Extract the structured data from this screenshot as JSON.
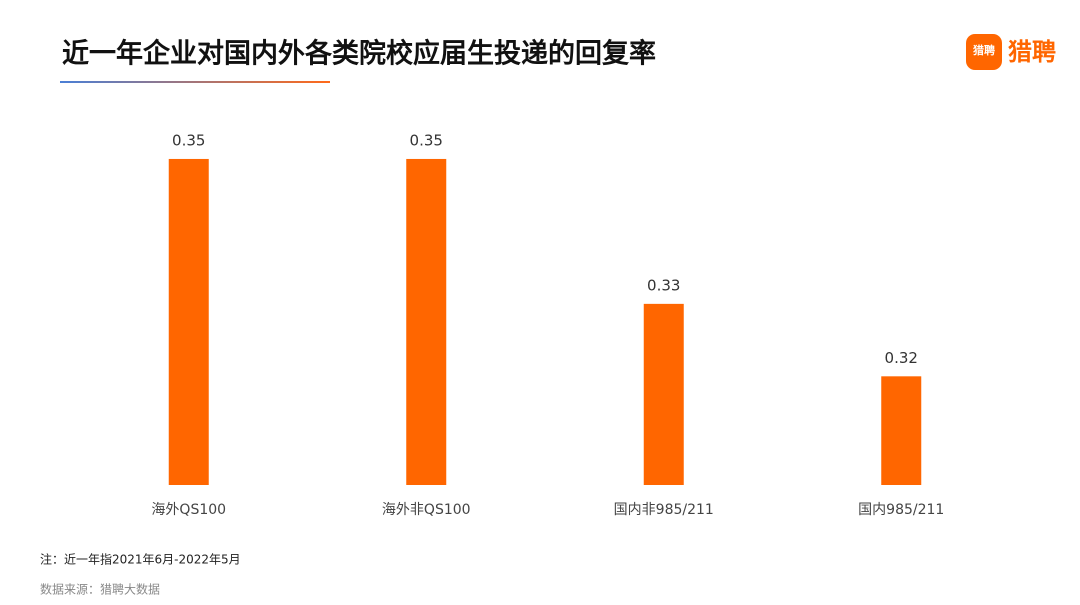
{
  "brand": "猎聘",
  "chart_data": {
    "type": "bar",
    "title": "近一年企业对国内外各类院校应届生投递的回复率",
    "categories": [
      "海外QS100",
      "海外非QS100",
      "国内非985/211",
      "国内985/211"
    ],
    "values": [
      0.35,
      0.35,
      0.33,
      0.32
    ],
    "color": "#ff6600",
    "ylim": [
      0.305,
      0.36
    ],
    "note": "注：近一年指2021年6月-2022年5月",
    "source": "数据来源：猎聘大数据"
  }
}
